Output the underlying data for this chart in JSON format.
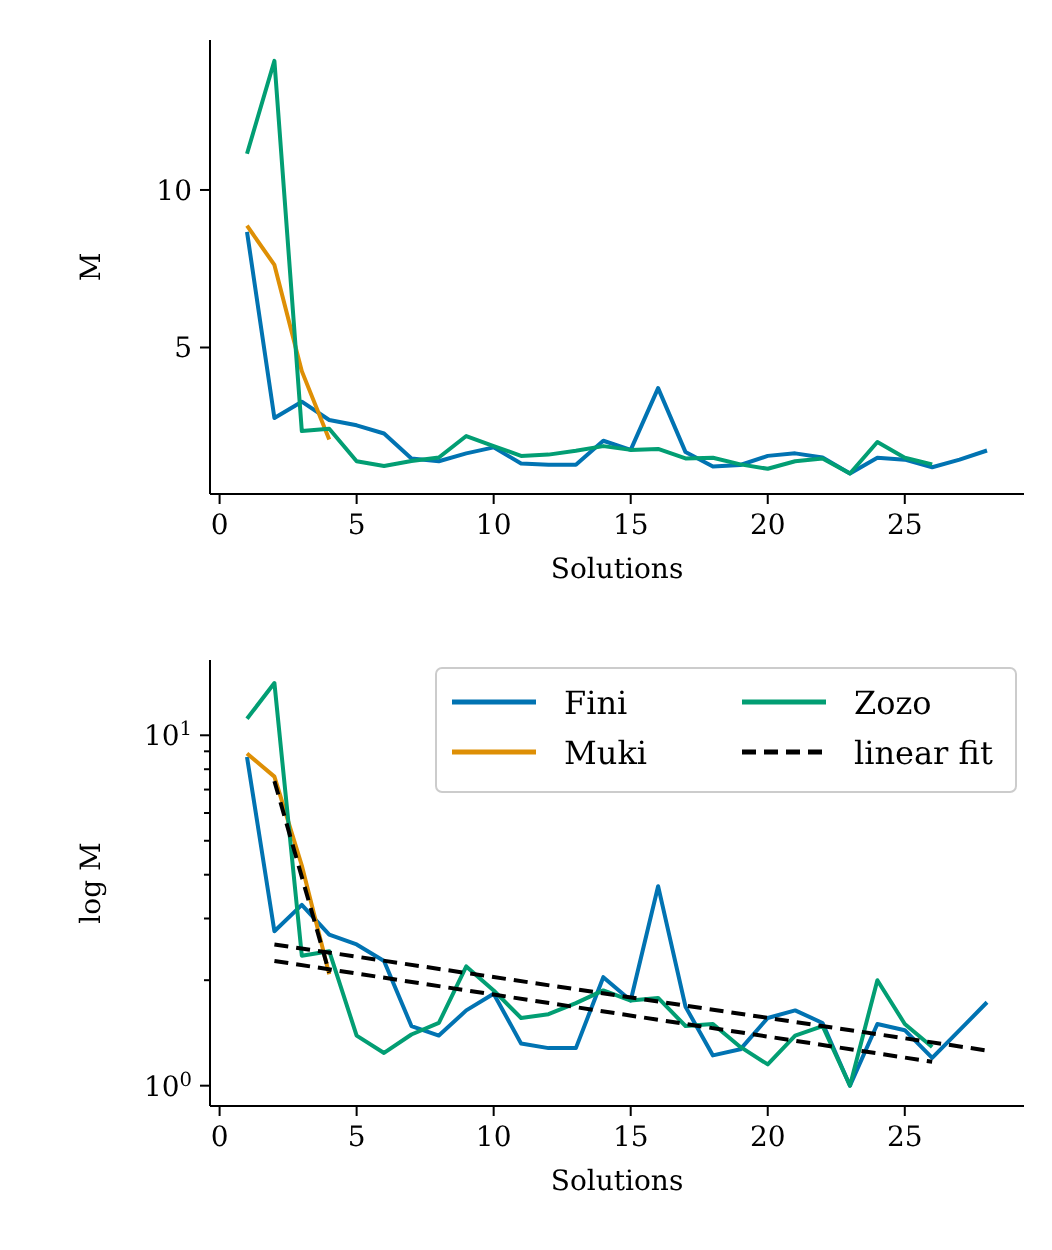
{
  "chart_data": [
    {
      "type": "line",
      "ylabel": "M",
      "xlabel": "Solutions",
      "x": [
        1,
        2,
        3,
        4,
        5,
        6,
        7,
        8,
        9,
        10,
        11,
        12,
        13,
        14,
        15,
        16,
        17,
        18,
        19,
        20,
        21,
        22,
        23,
        24,
        25,
        26,
        27,
        28
      ],
      "xlim": [
        -0.35,
        29.35
      ],
      "xticks": [
        0,
        5,
        10,
        15,
        20,
        25
      ],
      "ylim": [
        0.35,
        14.76
      ],
      "yticks": [
        5,
        10
      ],
      "legend": false,
      "series": [
        {
          "color": "#0173b2",
          "values": [
            8.67,
            2.76,
            3.28,
            2.7,
            2.53,
            2.27,
            1.48,
            1.39,
            1.64,
            1.83,
            1.32,
            1.28,
            1.28,
            2.04,
            1.75,
            3.71,
            1.68,
            1.22,
            1.27,
            1.56,
            1.64,
            1.51,
            1.0,
            1.5,
            1.44,
            1.2,
            1.44,
            1.73
          ]
        },
        {
          "color": "#de8f05",
          "x": [
            1,
            2,
            3,
            4
          ],
          "values": [
            8.87,
            7.62,
            4.25,
            2.08
          ]
        },
        {
          "color": "#029e73",
          "x": [
            1,
            2,
            3,
            4,
            5,
            6,
            7,
            8,
            9,
            10,
            11,
            12,
            13,
            14,
            15,
            16,
            17,
            18,
            19,
            20,
            21,
            22,
            23,
            24,
            25,
            26
          ],
          "values": [
            11.15,
            14.1,
            2.35,
            2.42,
            1.39,
            1.24,
            1.4,
            1.51,
            2.19,
            1.87,
            1.56,
            1.6,
            1.72,
            1.87,
            1.75,
            1.78,
            1.48,
            1.5,
            1.29,
            1.15,
            1.39,
            1.48,
            1.0,
            2.0,
            1.5,
            1.29
          ]
        }
      ]
    },
    {
      "type": "line",
      "ylabel": "log M",
      "xlabel": "Solutions",
      "x": [
        1,
        2,
        3,
        4,
        5,
        6,
        7,
        8,
        9,
        10,
        11,
        12,
        13,
        14,
        15,
        16,
        17,
        18,
        19,
        20,
        21,
        22,
        23,
        24,
        25,
        26,
        27,
        28
      ],
      "xlim": [
        -0.35,
        29.35
      ],
      "xticks": [
        0,
        5,
        10,
        15,
        20,
        25
      ],
      "log": true,
      "ylim": [
        0.875,
        16.4
      ],
      "yticks": [
        {
          "value": 1,
          "label": "10$^{0}$"
        },
        {
          "value": 2,
          "label": null
        },
        {
          "value": 3,
          "label": null
        },
        {
          "value": 4,
          "label": null
        },
        {
          "value": 5,
          "label": null
        },
        {
          "value": 6,
          "label": null
        },
        {
          "value": 7,
          "label": null
        },
        {
          "value": 8,
          "label": null
        },
        {
          "value": 9,
          "label": null
        },
        {
          "value": 10,
          "label": "10$^{1}$"
        }
      ],
      "legend": "top right",
      "series": [
        {
          "name": "Fini",
          "color": "#0173b2",
          "values": [
            8.67,
            2.76,
            3.28,
            2.7,
            2.53,
            2.27,
            1.48,
            1.39,
            1.64,
            1.83,
            1.32,
            1.28,
            1.28,
            2.04,
            1.75,
            3.71,
            1.68,
            1.22,
            1.27,
            1.56,
            1.64,
            1.51,
            1.0,
            1.5,
            1.44,
            1.2,
            1.44,
            1.73
          ]
        },
        {
          "name": "Muki",
          "color": "#de8f05",
          "x": [
            1,
            2,
            3,
            4
          ],
          "values": [
            8.87,
            7.62,
            4.25,
            2.08
          ]
        },
        {
          "name": "Zozo",
          "color": "#029e73",
          "x": [
            1,
            2,
            3,
            4,
            5,
            6,
            7,
            8,
            9,
            10,
            11,
            12,
            13,
            14,
            15,
            16,
            17,
            18,
            19,
            20,
            21,
            22,
            23,
            24,
            25,
            26
          ],
          "values": [
            11.15,
            14.1,
            2.35,
            2.42,
            1.39,
            1.24,
            1.4,
            1.51,
            2.19,
            1.87,
            1.56,
            1.6,
            1.72,
            1.87,
            1.75,
            1.78,
            1.48,
            1.5,
            1.29,
            1.15,
            1.39,
            1.48,
            1.0,
            2.0,
            1.5,
            1.29
          ]
        },
        {
          "name": "linear fit",
          "color": "#000000",
          "line_style": "dashed",
          "x": [
            2,
            28
          ],
          "values": [
            2.53,
            1.26
          ]
        },
        {
          "color": "#000000",
          "line_style": "dashed",
          "x": [
            2,
            26
          ],
          "values": [
            2.27,
            1.17
          ]
        },
        {
          "color": "#000000",
          "line_style": "dashed",
          "x": [
            2,
            4
          ],
          "values": [
            7.4,
            2.1
          ]
        }
      ]
    }
  ]
}
